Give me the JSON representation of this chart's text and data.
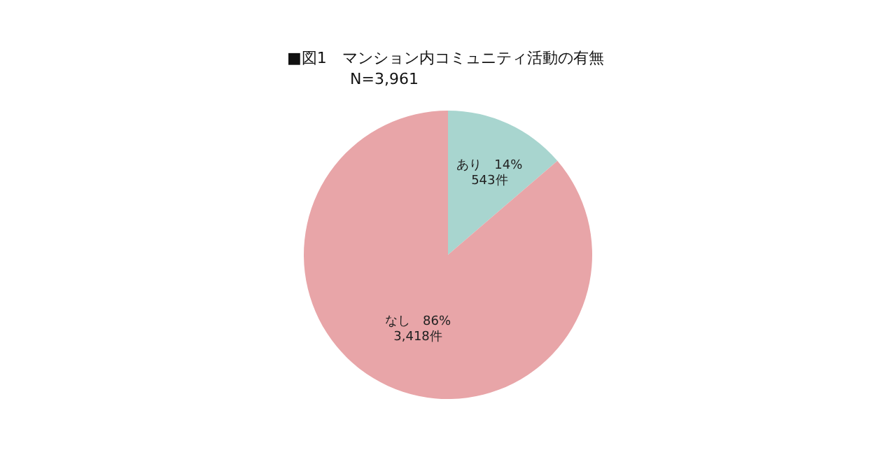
{
  "chart_data": {
    "type": "pie",
    "title": "■図1　マンション内コミュニティ活動の有無",
    "subtitle": "N=3,961",
    "categories": [
      "あり",
      "なし"
    ],
    "values": [
      543,
      3418
    ],
    "value_labels": [
      "14%\n543件",
      "86%\n3,418件"
    ],
    "colors": [
      "#a8d5cf",
      "#e8a5a8"
    ]
  }
}
